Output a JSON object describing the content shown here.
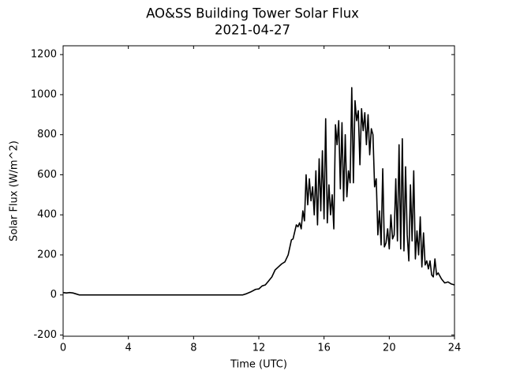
{
  "chart_data": {
    "type": "line",
    "title": "AO&SS Building Tower Solar Flux",
    "subtitle": "2021-04-27",
    "xlabel": "Time (UTC)",
    "ylabel": "Solar Flux (W/m^2)",
    "xlim": [
      0,
      24
    ],
    "xticks": [
      0,
      4,
      8,
      12,
      16,
      20,
      24
    ],
    "ylim": [
      -206,
      1244
    ],
    "yticks": [
      -200,
      0,
      200,
      400,
      600,
      800,
      1000,
      1200
    ],
    "grid": false,
    "series": [
      {
        "color": "#000000",
        "x": [
          0,
          0.2,
          0.4,
          0.6,
          0.8,
          1.0,
          11.0,
          11.2,
          11.5,
          11.8,
          12.0,
          12.2,
          12.4,
          12.6,
          12.8,
          13.0,
          13.2,
          13.4,
          13.6,
          13.8,
          14.0,
          14.1,
          14.3,
          14.4,
          14.5,
          14.6,
          14.7,
          14.8,
          14.9,
          15.0,
          15.1,
          15.2,
          15.3,
          15.4,
          15.5,
          15.6,
          15.7,
          15.8,
          15.9,
          16.0,
          16.1,
          16.2,
          16.3,
          16.4,
          16.5,
          16.6,
          16.7,
          16.8,
          16.9,
          17.0,
          17.1,
          17.2,
          17.3,
          17.4,
          17.5,
          17.6,
          17.7,
          17.8,
          17.9,
          18.0,
          18.1,
          18.2,
          18.3,
          18.4,
          18.5,
          18.6,
          18.7,
          18.8,
          18.9,
          19.0,
          19.1,
          19.2,
          19.3,
          19.4,
          19.5,
          19.6,
          19.7,
          19.8,
          19.9,
          20.0,
          20.1,
          20.2,
          20.3,
          20.4,
          20.5,
          20.6,
          20.7,
          20.8,
          20.9,
          21.0,
          21.1,
          21.2,
          21.3,
          21.4,
          21.5,
          21.6,
          21.7,
          21.8,
          21.9,
          22.0,
          22.1,
          22.2,
          22.3,
          22.4,
          22.5,
          22.6,
          22.7,
          22.8,
          22.9,
          23.0,
          23.2,
          23.4,
          23.6,
          23.8,
          24.0
        ],
        "values": [
          12,
          10,
          12,
          10,
          5,
          0,
          0,
          5,
          15,
          28,
          30,
          45,
          50,
          70,
          90,
          125,
          140,
          155,
          165,
          200,
          275,
          280,
          350,
          340,
          360,
          330,
          420,
          370,
          600,
          450,
          580,
          470,
          540,
          400,
          620,
          350,
          680,
          420,
          720,
          380,
          880,
          360,
          550,
          400,
          500,
          330,
          850,
          750,
          870,
          530,
          860,
          470,
          800,
          490,
          620,
          560,
          1035,
          560,
          970,
          870,
          920,
          650,
          930,
          820,
          910,
          750,
          900,
          700,
          830,
          800,
          540,
          580,
          300,
          420,
          250,
          630,
          240,
          260,
          330,
          230,
          400,
          280,
          300,
          580,
          270,
          750,
          230,
          780,
          220,
          640,
          300,
          170,
          550,
          270,
          620,
          180,
          320,
          200,
          390,
          140,
          310,
          150,
          170,
          130,
          170,
          100,
          90,
          180,
          100,
          110,
          80,
          60,
          65,
          55,
          50
        ]
      }
    ]
  }
}
